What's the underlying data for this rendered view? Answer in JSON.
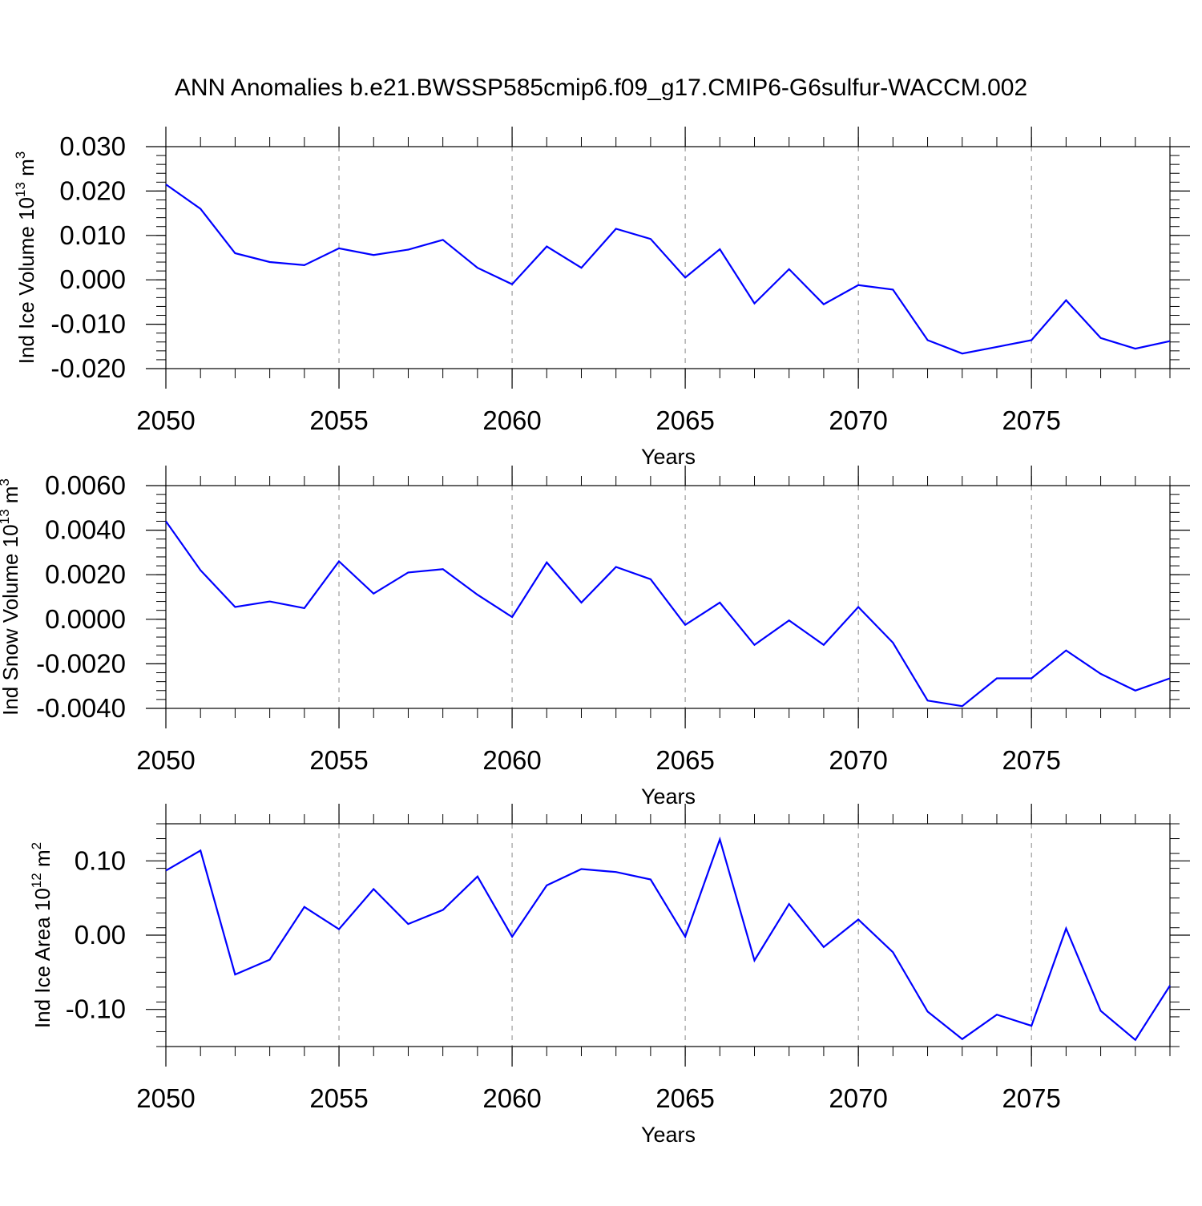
{
  "title": "ANN Anomalies b.e21.BWSSP585cmip6.f09_g17.CMIP6-G6sulfur-WACCM.002",
  "colors": {
    "line": "#0000ff",
    "axis": "#000000",
    "grid": "#888888"
  },
  "chart_data": [
    {
      "type": "line",
      "ylabel": "Ind Ice Volume",
      "ylabel_exp": "13",
      "ylabel_unit_exp": "3",
      "xlabel": "Years",
      "xlim": [
        2050,
        2079
      ],
      "ylim": [
        -0.02,
        0.03
      ],
      "yticks": [
        -0.02,
        -0.01,
        0.0,
        0.01,
        0.02,
        0.03
      ],
      "ytick_labels": [
        "-0.020",
        "-0.010",
        "0.000",
        "0.010",
        "0.020",
        "0.030"
      ],
      "xticks": [
        2050,
        2055,
        2060,
        2065,
        2070,
        2075
      ],
      "xtick_labels": [
        "2050",
        "2055",
        "2060",
        "2065",
        "2070",
        "2075"
      ],
      "x": [
        2050,
        2051,
        2052,
        2053,
        2054,
        2055,
        2056,
        2057,
        2058,
        2059,
        2060,
        2061,
        2062,
        2063,
        2064,
        2065,
        2066,
        2067,
        2068,
        2069,
        2070,
        2071,
        2072,
        2073,
        2074,
        2075,
        2076,
        2077,
        2078,
        2079
      ],
      "y": [
        0.0215,
        0.016,
        0.006,
        0.004,
        0.0033,
        0.0071,
        0.0056,
        0.0068,
        0.009,
        0.0027,
        -0.001,
        0.0075,
        0.0027,
        0.0115,
        0.0092,
        0.0005,
        0.0069,
        -0.0053,
        0.0024,
        -0.0055,
        -0.0012,
        -0.0022,
        -0.0136,
        -0.0166,
        -0.0151,
        -0.0136,
        -0.0046,
        -0.0131,
        -0.0155,
        -0.0138
      ]
    },
    {
      "type": "line",
      "ylabel": "Ind Snow Volume",
      "ylabel_exp": "13",
      "ylabel_unit_exp": "3",
      "xlabel": "Years",
      "xlim": [
        2050,
        2079
      ],
      "ylim": [
        -0.004,
        0.006
      ],
      "yticks": [
        -0.004,
        -0.002,
        0.0,
        0.002,
        0.004,
        0.006
      ],
      "ytick_labels": [
        "-0.0040",
        "-0.0020",
        "0.0000",
        "0.0020",
        "0.0040",
        "0.0060"
      ],
      "xticks": [
        2050,
        2055,
        2060,
        2065,
        2070,
        2075
      ],
      "xtick_labels": [
        "2050",
        "2055",
        "2060",
        "2065",
        "2070",
        "2075"
      ],
      "x": [
        2050,
        2051,
        2052,
        2053,
        2054,
        2055,
        2056,
        2057,
        2058,
        2059,
        2060,
        2061,
        2062,
        2063,
        2064,
        2065,
        2066,
        2067,
        2068,
        2069,
        2070,
        2071,
        2072,
        2073,
        2074,
        2075,
        2076,
        2077,
        2078,
        2079
      ],
      "y": [
        0.0044,
        0.0022,
        0.00055,
        0.0008,
        0.0005,
        0.0026,
        0.00115,
        0.0021,
        0.00225,
        0.0011,
        0.0001,
        0.00255,
        0.00075,
        0.00235,
        0.0018,
        -0.00025,
        0.00075,
        -0.00115,
        -5e-05,
        -0.00115,
        0.00055,
        -0.00105,
        -0.00365,
        -0.0039,
        -0.00265,
        -0.00265,
        -0.0014,
        -0.00245,
        -0.0032,
        -0.00265
      ]
    },
    {
      "type": "line",
      "ylabel": "Ind Ice Area",
      "ylabel_exp": "12",
      "ylabel_unit_exp": "2",
      "xlabel": "Years",
      "xlim": [
        2050,
        2079
      ],
      "ylim": [
        -0.15,
        0.15
      ],
      "yticks": [
        -0.1,
        0.0,
        0.1
      ],
      "ytick_labels": [
        "-0.10",
        "0.00",
        "0.10"
      ],
      "xticks": [
        2050,
        2055,
        2060,
        2065,
        2070,
        2075
      ],
      "xtick_labels": [
        "2050",
        "2055",
        "2060",
        "2065",
        "2070",
        "2075"
      ],
      "x": [
        2050,
        2051,
        2052,
        2053,
        2054,
        2055,
        2056,
        2057,
        2058,
        2059,
        2060,
        2061,
        2062,
        2063,
        2064,
        2065,
        2066,
        2067,
        2068,
        2069,
        2070,
        2071,
        2072,
        2073,
        2074,
        2075,
        2076,
        2077,
        2078,
        2079
      ],
      "y": [
        0.087,
        0.114,
        -0.053,
        -0.033,
        0.038,
        0.008,
        0.062,
        0.015,
        0.034,
        0.079,
        -0.002,
        0.067,
        0.089,
        0.085,
        0.075,
        -0.002,
        0.129,
        -0.034,
        0.042,
        -0.016,
        0.021,
        -0.023,
        -0.103,
        -0.14,
        -0.107,
        -0.122,
        0.009,
        -0.102,
        -0.141,
        -0.068
      ]
    }
  ]
}
